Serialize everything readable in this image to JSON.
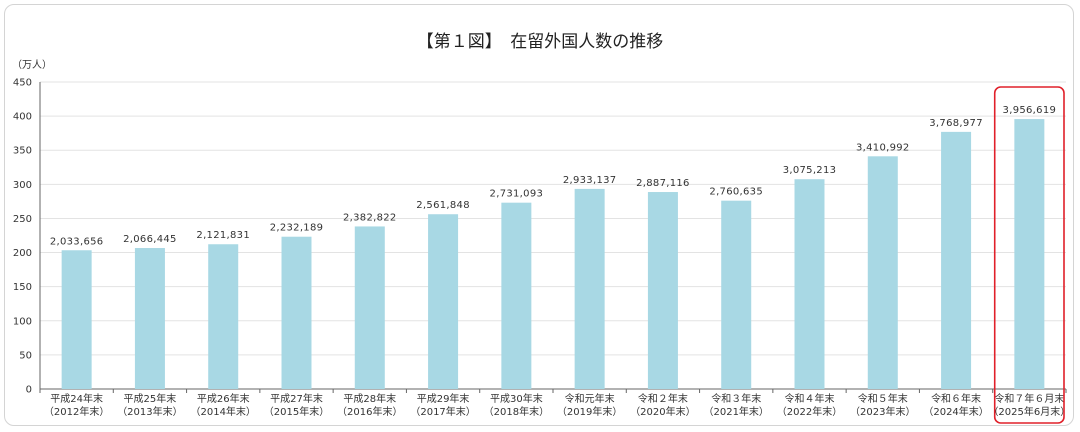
{
  "chart_data": {
    "type": "bar",
    "title": "【第１図】　在留外国人数の推移",
    "ylabel": "（万人）",
    "ylim": [
      0,
      450
    ],
    "yticks": [
      0,
      50,
      100,
      150,
      200,
      250,
      300,
      350,
      400,
      450
    ],
    "grid": true,
    "bar_color": "#a8d8e4",
    "highlight_color": "#e0202a",
    "highlight_index": 13,
    "categories": [
      [
        "平成24年末",
        "（2012年末）"
      ],
      [
        "平成25年末",
        "（2013年末）"
      ],
      [
        "平成26年末",
        "（2014年末）"
      ],
      [
        "平成27年末",
        "（2015年末）"
      ],
      [
        "平成28年末",
        "（2016年末）"
      ],
      [
        "平成29年末",
        "（2017年末）"
      ],
      [
        "平成30年末",
        "（2018年末）"
      ],
      [
        "令和元年末",
        "（2019年末）"
      ],
      [
        "令和２年末",
        "（2020年末）"
      ],
      [
        "令和３年末",
        "（2021年末）"
      ],
      [
        "令和４年末",
        "（2022年末）"
      ],
      [
        "令和５年末",
        "（2023年末）"
      ],
      [
        "令和６年末",
        "（2024年末）"
      ],
      [
        "令和７年６月末",
        "（2025年6月末）"
      ]
    ],
    "values": [
      2033656,
      2066445,
      2121831,
      2232189,
      2382822,
      2561848,
      2731093,
      2933137,
      2887116,
      2760635,
      3075213,
      3410992,
      3768977,
      3956619
    ],
    "value_labels": [
      "2,033,656",
      "2,066,445",
      "2,121,831",
      "2,232,189",
      "2,382,822",
      "2,561,848",
      "2,731,093",
      "2,933,137",
      "2,887,116",
      "2,760,635",
      "3,075,213",
      "3,410,992",
      "3,768,977",
      "3,956,619"
    ]
  }
}
